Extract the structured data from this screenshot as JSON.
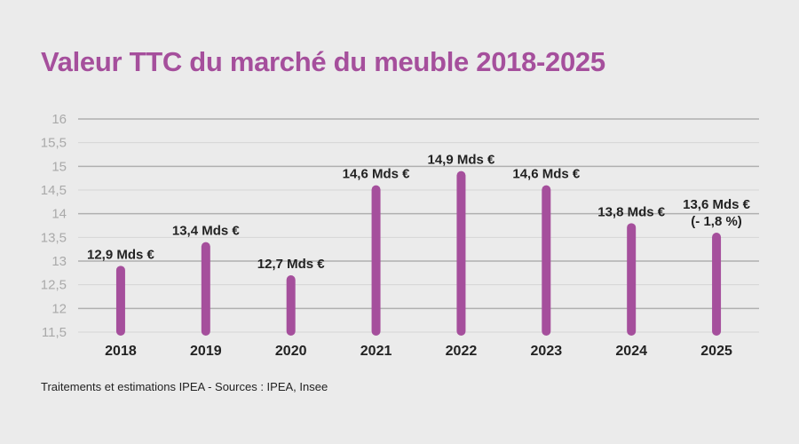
{
  "chart_data": {
    "type": "bar",
    "title": "Valeur TTC du marché du meuble 2018-2025",
    "xlabel": "",
    "ylabel": "",
    "ylim": [
      11.5,
      16
    ],
    "yticks": [
      "16",
      "15,5",
      "15",
      "14,5",
      "14",
      "13,5",
      "13",
      "12,5",
      "12",
      "11,5"
    ],
    "ytick_values": [
      16,
      15.5,
      15,
      14.5,
      14,
      13.5,
      13,
      12.5,
      12,
      11.5
    ],
    "categories": [
      "2018",
      "2019",
      "2020",
      "2021",
      "2022",
      "2023",
      "2024",
      "2025"
    ],
    "values": [
      12.9,
      13.4,
      12.7,
      14.6,
      14.9,
      14.6,
      13.8,
      13.6
    ],
    "data_labels": [
      [
        "12,9 Mds €"
      ],
      [
        "13,4 Mds €"
      ],
      [
        "12,7 Mds €"
      ],
      [
        "14,6 Mds €"
      ],
      [
        "14,9 Mds €"
      ],
      [
        "14,6 Mds €"
      ],
      [
        "13,8 Mds €"
      ],
      [
        "13,6 Mds €",
        "(- 1,8 %)"
      ]
    ],
    "bar_color": "#a54f9c",
    "grid": true,
    "legend": "none"
  },
  "source": "Traitements et estimations IPEA - Sources : IPEA, Insee"
}
